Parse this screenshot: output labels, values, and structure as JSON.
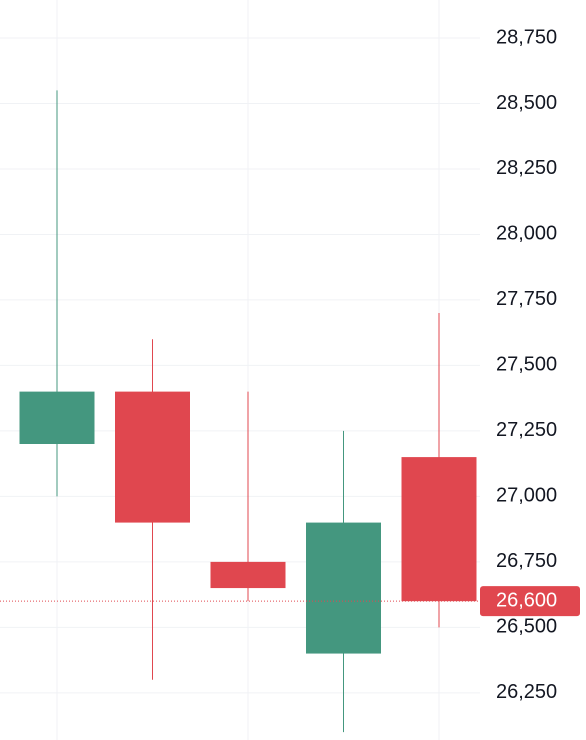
{
  "chart_data": {
    "type": "candlestick",
    "categories": [
      null,
      null,
      null,
      null,
      null
    ],
    "open": [
      27200,
      27400,
      26750,
      26400,
      27150
    ],
    "high": [
      28550,
      27600,
      27400,
      27250,
      27700
    ],
    "low": [
      27000,
      26300,
      26600,
      26100,
      26500
    ],
    "close": [
      27400,
      26900,
      26650,
      26900,
      26600
    ],
    "up_color": "#44977f",
    "down_color": "#e0474f",
    "ylim": [
      26070,
      28895
    ],
    "yticks": [
      {
        "value": 26250,
        "label": "26,250"
      },
      {
        "value": 26500,
        "label": "26,500"
      },
      {
        "value": 26750,
        "label": "26,750"
      },
      {
        "value": 27000,
        "label": "27,000"
      },
      {
        "value": 27250,
        "label": "27,250"
      },
      {
        "value": 27500,
        "label": "27,500"
      },
      {
        "value": 27750,
        "label": "27,750"
      },
      {
        "value": 28000,
        "label": "28,000"
      },
      {
        "value": 28250,
        "label": "28,250"
      },
      {
        "value": 28500,
        "label": "28,500"
      },
      {
        "value": 28750,
        "label": "28,750"
      }
    ],
    "last_price": {
      "value": 26600,
      "label": "26,600"
    },
    "grid": true
  }
}
